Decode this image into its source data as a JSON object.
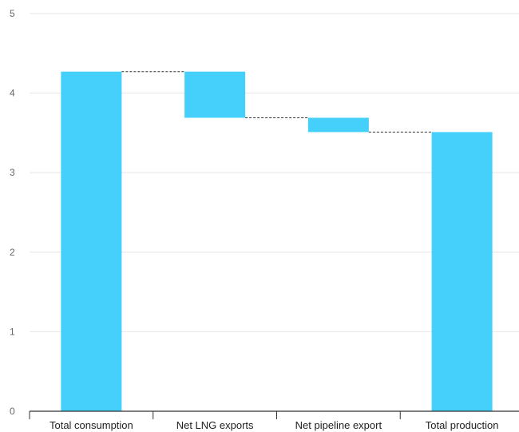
{
  "chart_data": {
    "type": "bar",
    "variant": "waterfall",
    "categories": [
      "Total consumption",
      "Net LNG exports",
      "Net pipeline export",
      "Total production"
    ],
    "bars": [
      {
        "category": "Total consumption",
        "start": 0,
        "end": 4.27,
        "kind": "total"
      },
      {
        "category": "Net LNG exports",
        "start": 4.27,
        "end": 3.69,
        "kind": "delta"
      },
      {
        "category": "Net pipeline export",
        "start": 3.69,
        "end": 3.51,
        "kind": "delta"
      },
      {
        "category": "Total production",
        "start": 0,
        "end": 3.51,
        "kind": "total"
      }
    ],
    "title": "",
    "xlabel": "",
    "ylabel": "",
    "ylim": [
      0,
      5
    ],
    "yticks": [
      "0",
      "1",
      "2",
      "3",
      "4",
      "5"
    ],
    "grid": true,
    "connectors": true,
    "bar_color": "#45d0fc"
  }
}
